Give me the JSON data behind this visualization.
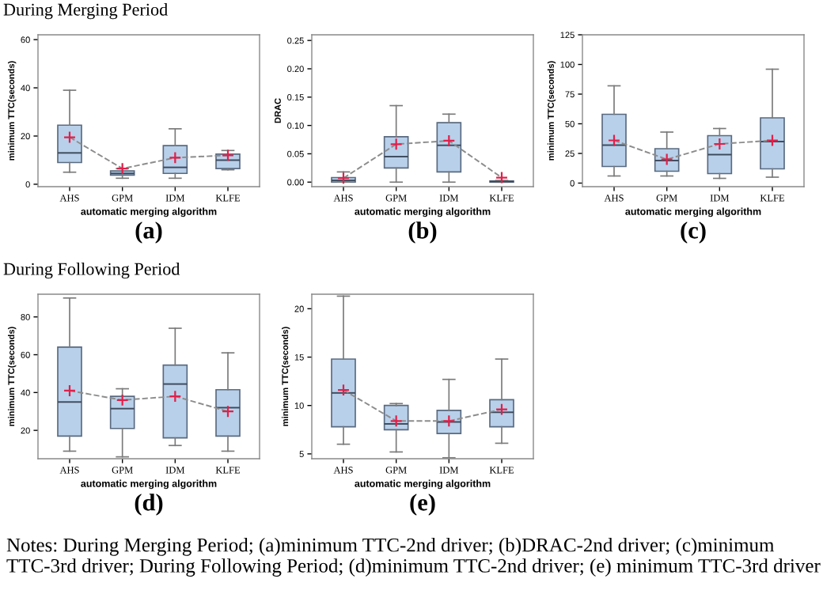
{
  "chart_data": [
    {
      "type": "box",
      "title": "During Merging Period",
      "xlabel": "automatic merging algorithm",
      "ylabel": "minimum TTC(seconds)",
      "categories": [
        "AHS",
        "GPM",
        "IDM",
        "KLFE"
      ],
      "ylim": [
        -1,
        62
      ],
      "yticks": [
        0,
        20,
        40,
        60
      ],
      "annotations": [
        "(a)"
      ],
      "grid": false,
      "legend": false,
      "series": [
        {
          "type": "box",
          "color": "#b9d0ea",
          "boxes": [
            {
              "low": 5,
              "q1": 9,
              "median": 13,
              "q3": 24.5,
              "high": 39,
              "mean": 19.5
            },
            {
              "low": 2.5,
              "q1": 3.8,
              "median": 4.5,
              "q3": 5.5,
              "high": 6.5,
              "mean": 6.5
            },
            {
              "low": 2.5,
              "q1": 4.5,
              "median": 7,
              "q3": 16,
              "high": 23,
              "mean": 11
            },
            {
              "low": 6,
              "q1": 6.5,
              "median": 10,
              "q3": 12.5,
              "high": 14,
              "mean": 12
            }
          ]
        },
        {
          "type": "line",
          "color": "#8c8c8c",
          "line_style": "dashed",
          "marker": "none",
          "values": [
            19.5,
            6.5,
            11,
            12
          ]
        }
      ]
    },
    {
      "type": "box",
      "xlabel": "automatic merging algorithm",
      "ylabel": "DRAC",
      "categories": [
        "AHS",
        "GPM",
        "IDM",
        "KLFE"
      ],
      "ylim": [
        -0.008,
        0.26
      ],
      "yticks": [
        {
          "value": 0,
          "label": "0.00"
        },
        {
          "value": 0.05,
          "label": "0.05"
        },
        {
          "value": 0.1,
          "label": "0.10"
        },
        {
          "value": 0.15,
          "label": "0.15"
        },
        {
          "value": 0.2,
          "label": "0.20"
        },
        {
          "value": 0.25,
          "label": "0.25"
        }
      ],
      "annotations": [
        "(b)"
      ],
      "grid": false,
      "legend": false,
      "series": [
        {
          "type": "box",
          "color": "#b9d0ea",
          "boxes": [
            {
              "low": 0,
              "q1": 0,
              "median": 0.003,
              "q3": 0.008,
              "high": 0.018,
              "mean": 0.007
            },
            {
              "low": 0,
              "q1": 0.025,
              "median": 0.045,
              "q3": 0.08,
              "high": 0.135,
              "mean": 0.067
            },
            {
              "low": 0,
              "q1": 0.018,
              "median": 0.065,
              "q3": 0.105,
              "high": 0.12,
              "mean": 0.073
            },
            {
              "low": 0,
              "q1": 0,
              "median": 0.001,
              "q3": 0.002,
              "high": 0.003,
              "mean": 0.008
            }
          ]
        },
        {
          "type": "line",
          "color": "#8c8c8c",
          "line_style": "dashed",
          "marker": "none",
          "values": [
            0.007,
            0.067,
            0.073,
            0.008
          ]
        }
      ]
    },
    {
      "type": "box",
      "xlabel": "automatic merging algorithm",
      "ylabel": "minimum TTC(seconds)",
      "categories": [
        "AHS",
        "GPM",
        "IDM",
        "KLFE"
      ],
      "ylim": [
        -3,
        125
      ],
      "yticks": [
        0,
        25,
        50,
        75,
        100,
        125
      ],
      "annotations": [
        "(c)"
      ],
      "grid": false,
      "legend": false,
      "series": [
        {
          "type": "box",
          "color": "#b9d0ea",
          "boxes": [
            {
              "low": 6,
              "q1": 14,
              "median": 32,
              "q3": 58,
              "high": 82,
              "mean": 36
            },
            {
              "low": 6,
              "q1": 10,
              "median": 19,
              "q3": 29,
              "high": 43,
              "mean": 20
            },
            {
              "low": 4,
              "q1": 8,
              "median": 24,
              "q3": 40,
              "high": 46,
              "mean": 33
            },
            {
              "low": 5,
              "q1": 12,
              "median": 35,
              "q3": 55,
              "high": 96,
              "mean": 36
            }
          ]
        },
        {
          "type": "line",
          "color": "#8c8c8c",
          "line_style": "dashed",
          "marker": "none",
          "values": [
            36,
            20,
            33,
            36
          ]
        }
      ]
    },
    {
      "type": "box",
      "title": "During Following Period",
      "xlabel": "automatic merging algorithm",
      "ylabel": "minimum TTC(seconds)",
      "categories": [
        "AHS",
        "GPM",
        "IDM",
        "KLFE"
      ],
      "ylim": [
        5,
        92
      ],
      "yticks": [
        20,
        40,
        60,
        80
      ],
      "annotations": [
        "(d)"
      ],
      "grid": false,
      "legend": false,
      "series": [
        {
          "type": "box",
          "color": "#b9d0ea",
          "boxes": [
            {
              "low": 9,
              "q1": 17,
              "median": 35,
              "q3": 64,
              "high": 90,
              "mean": 41
            },
            {
              "low": 6,
              "q1": 21,
              "median": 31.5,
              "q3": 38,
              "high": 42,
              "mean": 36
            },
            {
              "low": 12,
              "q1": 16,
              "median": 44.5,
              "q3": 54.5,
              "high": 74,
              "mean": 38
            },
            {
              "low": 9,
              "q1": 17,
              "median": 32,
              "q3": 41.5,
              "high": 61,
              "mean": 30
            }
          ]
        },
        {
          "type": "line",
          "color": "#8c8c8c",
          "line_style": "dashed",
          "marker": "none",
          "values": [
            41,
            36,
            38,
            30
          ]
        }
      ]
    },
    {
      "type": "box",
      "xlabel": "automatic merging algorithm",
      "ylabel": "minimum TTC(seconds)",
      "categories": [
        "AHS",
        "GPM",
        "IDM",
        "KLFE"
      ],
      "ylim": [
        4.5,
        21.5
      ],
      "yticks": [
        5,
        10,
        15,
        20
      ],
      "annotations": [
        "(e)",
        "Notes: During Merging Period; (a)minimum TTC-2nd driver; (b)DRAC-2nd driver; (c)minimum TTC-3rd driver; During Following Period; (d)minimum TTC-2nd driver; (e) minimum TTC-3rd driver"
      ],
      "grid": false,
      "legend": false,
      "series": [
        {
          "type": "box",
          "color": "#b9d0ea",
          "boxes": [
            {
              "low": 6,
              "q1": 7.8,
              "median": 11.3,
              "q3": 14.8,
              "high": 21.3,
              "mean": 11.6
            },
            {
              "low": 5.2,
              "q1": 7.5,
              "median": 8.1,
              "q3": 10,
              "high": 10.2,
              "mean": 8.4
            },
            {
              "low": 4.6,
              "q1": 7.1,
              "median": 8.3,
              "q3": 9.5,
              "high": 12.7,
              "mean": 8.4
            },
            {
              "low": 6.1,
              "q1": 7.8,
              "median": 9.3,
              "q3": 10.6,
              "high": 14.8,
              "mean": 9.6
            }
          ]
        },
        {
          "type": "line",
          "color": "#8c8c8c",
          "line_style": "dashed",
          "marker": "none",
          "values": [
            11.6,
            8.4,
            8.4,
            9.6
          ]
        }
      ]
    }
  ]
}
